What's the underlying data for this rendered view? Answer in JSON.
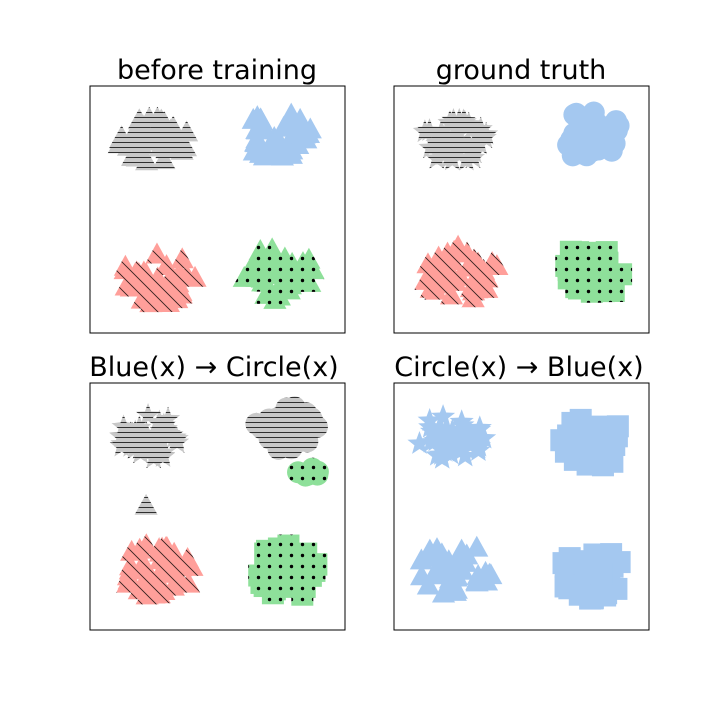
{
  "figure": {
    "background": "#ffffff",
    "colors": {
      "gray": "#c8c8c8",
      "blue": "#a4c8f0",
      "red": "#ff9f9a",
      "green": "#8ee09a",
      "hatch": "#000000",
      "axis": "#000000"
    }
  },
  "chart_data": [
    {
      "type": "scatter",
      "title": "before training",
      "xlim": [
        0,
        1
      ],
      "ylim": [
        0,
        1
      ],
      "grid": false,
      "clusters": [
        {
          "center": [
            0.25,
            0.78
          ],
          "color": "gray",
          "shape": "triangle",
          "hatch": "horizontal",
          "count": 42,
          "spread": [
            0.14,
            0.09
          ]
        },
        {
          "center": [
            0.74,
            0.8
          ],
          "color": "blue",
          "shape": "triangle",
          "hatch": "none",
          "count": 40,
          "spread": [
            0.14,
            0.1
          ]
        },
        {
          "center": [
            0.27,
            0.22
          ],
          "color": "red",
          "shape": "triangle",
          "hatch": "diagonal",
          "count": 40,
          "spread": [
            0.15,
            0.11
          ]
        },
        {
          "center": [
            0.74,
            0.24
          ],
          "color": "green",
          "shape": "triangle",
          "hatch": "dots",
          "count": 38,
          "spread": [
            0.14,
            0.11
          ]
        }
      ]
    },
    {
      "type": "scatter",
      "title": "ground truth",
      "xlim": [
        0,
        1
      ],
      "ylim": [
        0,
        1
      ],
      "grid": false,
      "clusters": [
        {
          "center": [
            0.24,
            0.78
          ],
          "color": "gray",
          "shape": "star",
          "hatch": "horizontal",
          "count": 42,
          "spread": [
            0.13,
            0.09
          ]
        },
        {
          "center": [
            0.77,
            0.8
          ],
          "color": "blue",
          "shape": "circle",
          "hatch": "none",
          "count": 36,
          "spread": [
            0.13,
            0.1
          ]
        },
        {
          "center": [
            0.26,
            0.24
          ],
          "color": "red",
          "shape": "triangle",
          "hatch": "diagonal",
          "count": 40,
          "spread": [
            0.15,
            0.11
          ]
        },
        {
          "center": [
            0.77,
            0.24
          ],
          "color": "green",
          "shape": "square",
          "hatch": "dots",
          "count": 36,
          "spread": [
            0.13,
            0.11
          ]
        }
      ]
    },
    {
      "type": "scatter",
      "title": "Blue(x) → Circle(x)",
      "xlim": [
        0,
        1
      ],
      "ylim": [
        0,
        1
      ],
      "grid": false,
      "clusters": [
        {
          "center": [
            0.24,
            0.78
          ],
          "color": "gray",
          "shape": "star",
          "hatch": "horizontal",
          "count": 42,
          "spread": [
            0.13,
            0.09
          ]
        },
        {
          "center": [
            0.77,
            0.82
          ],
          "color": "gray",
          "shape": "circle",
          "hatch": "horizontal",
          "count": 34,
          "spread": [
            0.12,
            0.09
          ]
        },
        {
          "center": [
            0.86,
            0.64
          ],
          "color": "green",
          "shape": "circle",
          "hatch": "dots",
          "count": 6,
          "spread": [
            0.05,
            0.02
          ]
        },
        {
          "center": [
            0.26,
            0.24
          ],
          "color": "red",
          "shape": "triangle",
          "hatch": "diagonal",
          "count": 40,
          "spread": [
            0.15,
            0.11
          ]
        },
        {
          "center": [
            0.22,
            0.5
          ],
          "color": "gray",
          "shape": "triangle",
          "hatch": "horizontal",
          "count": 1,
          "spread": [
            0.0,
            0.0
          ]
        },
        {
          "center": [
            0.78,
            0.24
          ],
          "color": "green",
          "shape": "square",
          "hatch": "dots",
          "count": 36,
          "spread": [
            0.13,
            0.11
          ]
        }
      ]
    },
    {
      "type": "scatter",
      "title": "Circle(x) → Blue(x)",
      "xlim": [
        0,
        1
      ],
      "ylim": [
        0,
        1
      ],
      "grid": false,
      "clusters": [
        {
          "center": [
            0.22,
            0.78
          ],
          "color": "blue",
          "shape": "star",
          "hatch": "none",
          "count": 42,
          "spread": [
            0.14,
            0.09
          ]
        },
        {
          "center": [
            0.78,
            0.76
          ],
          "color": "blue",
          "shape": "square",
          "hatch": "none",
          "count": 36,
          "spread": [
            0.13,
            0.1
          ]
        },
        {
          "center": [
            0.24,
            0.24
          ],
          "color": "blue",
          "shape": "triangle",
          "hatch": "none",
          "count": 38,
          "spread": [
            0.15,
            0.11
          ]
        },
        {
          "center": [
            0.78,
            0.22
          ],
          "color": "blue",
          "shape": "square",
          "hatch": "none",
          "count": 36,
          "spread": [
            0.13,
            0.11
          ]
        }
      ]
    }
  ]
}
